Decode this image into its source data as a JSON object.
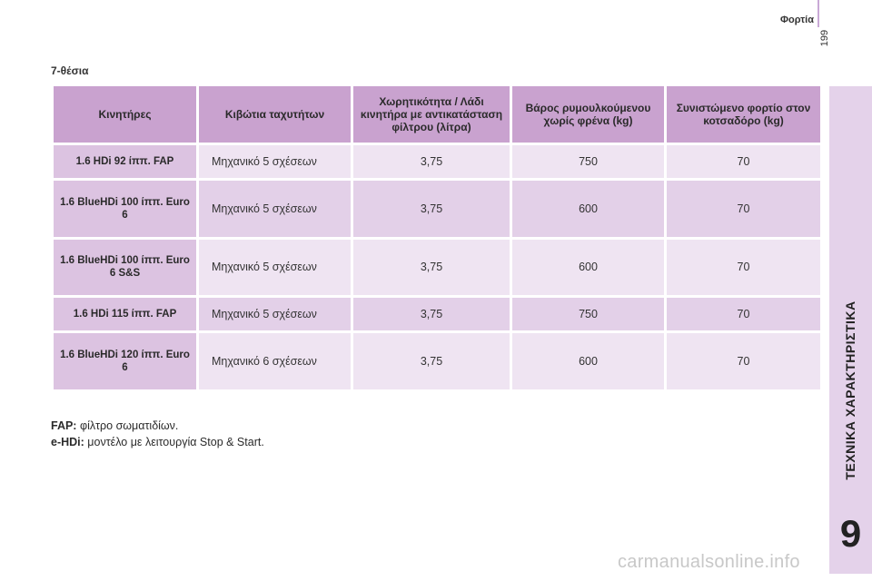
{
  "header": {
    "section": "Φορτία",
    "page_number": "199"
  },
  "side_tab": {
    "label": "ΤΕΧΝΙΚΑ ΧΑΡΑΚΤΗΡΙΣΤΙΚΑ",
    "chapter": "9"
  },
  "section_title": "7-θέσια",
  "table": {
    "headers": [
      "Κινητήρες",
      "Κιβώτια ταχυτήτων",
      "Χωρητικότητα / Λάδι κινητήρα με αντικατάσταση φίλτρου (λίτρα)",
      "Βάρος ρυμουλκούμενου χωρίς φρένα (kg)",
      "Συνιστώμενο φορτίο στον κοτσαδόρο (kg)"
    ],
    "rows": [
      {
        "engine": "1.6 HDi 92 ίππ. FAP",
        "gearbox": "Μηχανικό 5 σχέσεων",
        "oil": "3,75",
        "trailer": "750",
        "towbar": "70"
      },
      {
        "engine": "1.6 BlueHDi 100 ίππ. Euro 6",
        "gearbox": "Μηχανικό 5 σχέσεων",
        "oil": "3,75",
        "trailer": "600",
        "towbar": "70"
      },
      {
        "engine": "1.6 BlueHDi 100 ίππ. Euro 6 S&S",
        "gearbox": "Μηχανικό 5 σχέσεων",
        "oil": "3,75",
        "trailer": "600",
        "towbar": "70"
      },
      {
        "engine": "1.6 HDi 115 ίππ. FAP",
        "gearbox": "Μηχανικό 5 σχέσεων",
        "oil": "3,75",
        "trailer": "750",
        "towbar": "70"
      },
      {
        "engine": "1.6 BlueHDi 120 ίππ. Euro 6",
        "gearbox": "Μηχανικό 6 σχέσεων",
        "oil": "3,75",
        "trailer": "600",
        "towbar": "70"
      }
    ]
  },
  "footnotes": [
    {
      "term": "FAP:",
      "text": "φίλτρο σωματιδίων."
    },
    {
      "term": "e-HDi:",
      "text": "μοντέλο με λειτουργία Stop & Start."
    }
  ],
  "watermark": "carmanualsonline.info",
  "colors": {
    "header_bg": "#c9a2cf",
    "engine_bg": "#dcc3e1",
    "row_light": "#efe4f2",
    "row_dark": "#e3d0e8",
    "tab_bg": "#e4d2ea"
  }
}
